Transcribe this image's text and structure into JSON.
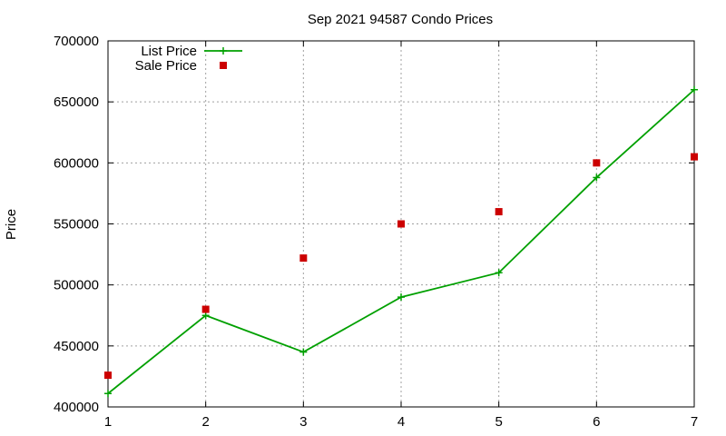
{
  "chart_data": {
    "type": "line",
    "title": "Sep 2021 94587 Condo Prices",
    "xlabel": "",
    "ylabel": "Price",
    "x": [
      1,
      2,
      3,
      4,
      5,
      6,
      7
    ],
    "xlim": [
      1,
      7
    ],
    "ylim": [
      400000,
      700000
    ],
    "xticks": [
      "1",
      "2",
      "3",
      "4",
      "5",
      "6",
      "7"
    ],
    "yticks": [
      "400000",
      "450000",
      "500000",
      "550000",
      "600000",
      "650000",
      "700000"
    ],
    "ytick_values": [
      400000,
      450000,
      500000,
      550000,
      600000,
      650000,
      700000
    ],
    "grid": true,
    "legend_position": "top-left",
    "series": [
      {
        "name": "List Price",
        "style": "line-with-plus-markers",
        "color": "#00a000",
        "values": [
          411000,
          475000,
          445000,
          490000,
          510000,
          588000,
          660000
        ]
      },
      {
        "name": "Sale Price",
        "style": "square-markers",
        "color": "#cc0000",
        "values": [
          426000,
          480000,
          522000,
          550000,
          560000,
          600000,
          605000
        ]
      }
    ]
  }
}
